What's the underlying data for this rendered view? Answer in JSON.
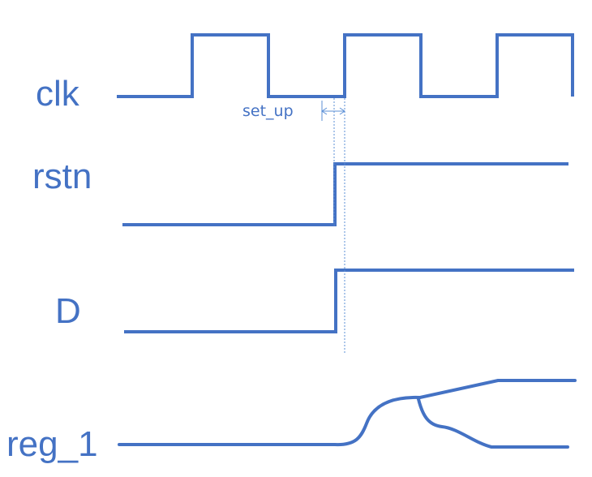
{
  "signals": [
    {
      "id": "clk",
      "label": "clk"
    },
    {
      "id": "rstn",
      "label": "rstn"
    },
    {
      "id": "d",
      "label": "D"
    },
    {
      "id": "reg_1",
      "label": "reg_1"
    }
  ],
  "annotation": {
    "setup_label": "set_up"
  },
  "colors": {
    "waveform": "#4472c4",
    "label": "#4472c4",
    "annotation_line": "#5b8fd6"
  }
}
